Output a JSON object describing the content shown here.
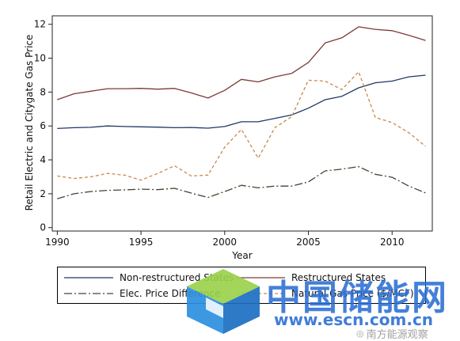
{
  "chart_data": {
    "type": "line",
    "title": "",
    "xlabel": "Year",
    "ylabel": "Retail Electric and Citygate Gas Price",
    "xlim": [
      1989.7,
      2012.4
    ],
    "ylim": [
      -0.2,
      12.5
    ],
    "xticks": [
      1990,
      1995,
      2000,
      2005,
      2010
    ],
    "yticks": [
      0,
      2,
      4,
      6,
      8,
      10,
      12
    ],
    "grid": false,
    "legend_position": "bottom",
    "x": [
      1990,
      1991,
      1992,
      1993,
      1994,
      1995,
      1996,
      1997,
      1998,
      1999,
      2000,
      2001,
      2002,
      2003,
      2004,
      2005,
      2006,
      2007,
      2008,
      2009,
      2010,
      2011,
      2012
    ],
    "series": [
      {
        "name": "Non-restructured States",
        "color": "#1f3864",
        "dash": "",
        "values": [
          5.85,
          5.9,
          5.92,
          6.0,
          5.97,
          5.95,
          5.93,
          5.9,
          5.91,
          5.87,
          5.97,
          6.25,
          6.25,
          6.45,
          6.65,
          7.05,
          7.55,
          7.75,
          8.25,
          8.55,
          8.65,
          8.9,
          9.0
        ]
      },
      {
        "name": "Restructured States",
        "color": "#7b3b36",
        "dash": "",
        "values": [
          7.55,
          7.9,
          8.05,
          8.2,
          8.2,
          8.22,
          8.17,
          8.22,
          7.95,
          7.65,
          8.1,
          8.75,
          8.6,
          8.9,
          9.1,
          9.75,
          10.9,
          11.2,
          11.85,
          11.7,
          11.62,
          11.35,
          11.05
        ]
      },
      {
        "name": "Elec. Price Difference",
        "color": "#444433",
        "dash": "10,3,2,3",
        "values": [
          1.7,
          2.0,
          2.13,
          2.2,
          2.23,
          2.27,
          2.24,
          2.32,
          2.04,
          1.78,
          2.13,
          2.5,
          2.35,
          2.45,
          2.45,
          2.7,
          3.35,
          3.45,
          3.6,
          3.15,
          2.97,
          2.45,
          2.05
        ]
      },
      {
        "name": "Natural Gas Price ($/MCF)",
        "color": "#c98a4b",
        "dash": "4,3",
        "values": [
          3.05,
          2.9,
          3.0,
          3.2,
          3.1,
          2.8,
          3.2,
          3.65,
          3.05,
          3.1,
          4.75,
          5.8,
          4.1,
          5.9,
          6.55,
          8.7,
          8.65,
          8.15,
          9.2,
          6.5,
          6.2,
          5.6,
          4.8
        ]
      }
    ]
  },
  "watermark": {
    "brand_text": "中国储能网",
    "url_text": "www.escn.com.cn",
    "source_text": "南方能源观察",
    "brand_color": "#2b6fd4"
  }
}
